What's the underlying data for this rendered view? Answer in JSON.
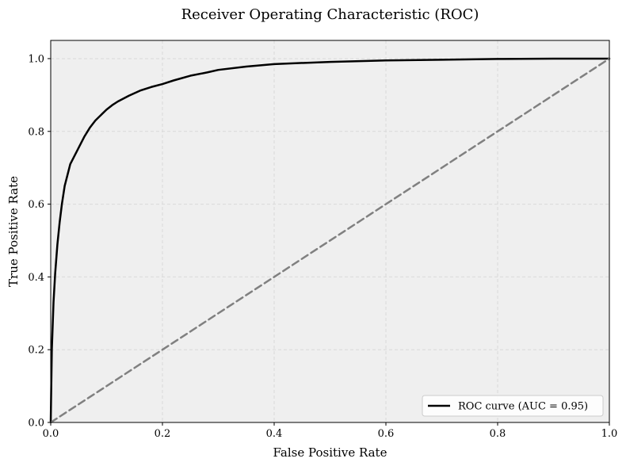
{
  "chart_data": {
    "type": "line",
    "title": "Receiver Operating Characteristic (ROC)",
    "xlabel": "False Positive Rate",
    "ylabel": "True Positive Rate",
    "xlim": [
      0.0,
      1.0
    ],
    "ylim": [
      0.0,
      1.05
    ],
    "x_ticks": [
      "0.0",
      "0.2",
      "0.4",
      "0.6",
      "0.8",
      "1.0"
    ],
    "y_ticks": [
      "0.0",
      "0.2",
      "0.4",
      "0.6",
      "0.8",
      "1.0"
    ],
    "grid": true,
    "legend_position": "lower-right",
    "series": [
      {
        "name": "ROC curve (AUC = 0.95)",
        "color": "#000000",
        "style": "solid",
        "x": [
          0.0,
          0.002,
          0.005,
          0.008,
          0.012,
          0.016,
          0.02,
          0.025,
          0.03,
          0.035,
          0.04,
          0.05,
          0.06,
          0.07,
          0.08,
          0.09,
          0.1,
          0.11,
          0.12,
          0.14,
          0.16,
          0.18,
          0.2,
          0.22,
          0.25,
          0.28,
          0.3,
          0.35,
          0.4,
          0.5,
          0.6,
          0.7,
          0.8,
          0.9,
          1.0
        ],
        "y": [
          0.0,
          0.2,
          0.33,
          0.41,
          0.49,
          0.55,
          0.6,
          0.65,
          0.68,
          0.71,
          0.725,
          0.755,
          0.785,
          0.81,
          0.83,
          0.845,
          0.86,
          0.872,
          0.882,
          0.898,
          0.912,
          0.922,
          0.93,
          0.94,
          0.953,
          0.962,
          0.969,
          0.978,
          0.985,
          0.991,
          0.995,
          0.997,
          0.999,
          1.0,
          1.0
        ]
      },
      {
        "name": "",
        "color": "#808080",
        "style": "dashed",
        "x": [
          0.0,
          1.0
        ],
        "y": [
          0.0,
          1.0
        ]
      }
    ]
  },
  "colors": {
    "plot_background": "#efefef",
    "grid": "#d9d9d9",
    "frame": "#000000"
  }
}
